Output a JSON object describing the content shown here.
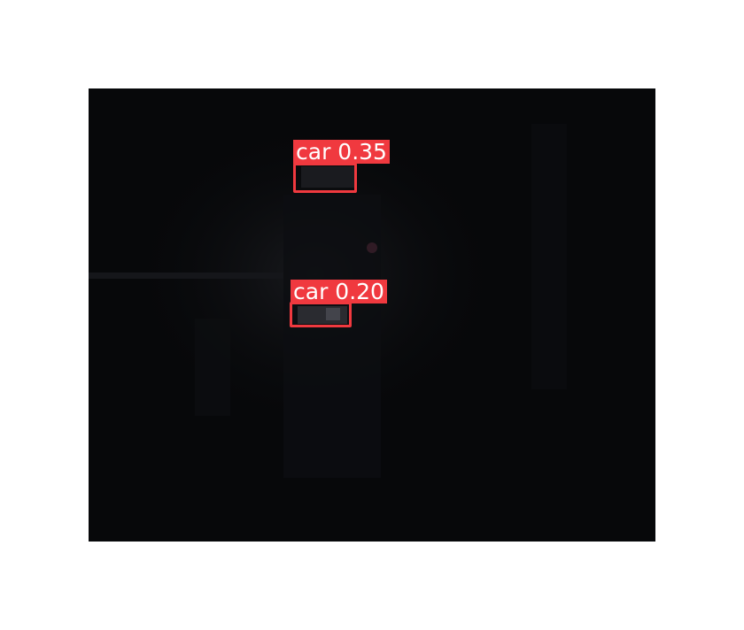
{
  "image": {
    "scene": "dark-night-aerial-parking-view",
    "detections": [
      {
        "label": "car",
        "score": "0.35",
        "color": "#f0393f"
      },
      {
        "label": "car",
        "score": "0.20",
        "color": "#f0393f"
      }
    ]
  },
  "colors": {
    "background": "#ffffff",
    "frame": "#07080a",
    "detection": "#f0393f",
    "label_text": "#ffffff"
  }
}
